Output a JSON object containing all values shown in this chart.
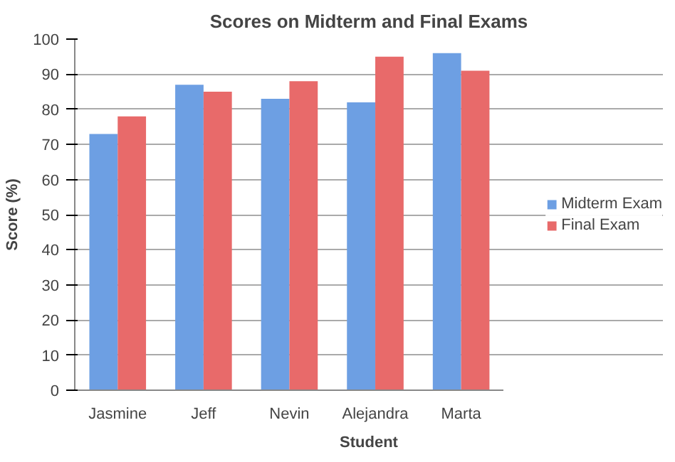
{
  "chart_data": {
    "type": "bar",
    "title": "Scores on Midterm and Final Exams",
    "xlabel": "Student",
    "ylabel": "Score (%)",
    "categories": [
      "Jasmine",
      "Jeff",
      "Nevin",
      "Alejandra",
      "Marta"
    ],
    "series": [
      {
        "name": "Midterm Exam",
        "color": "#6d9fe3",
        "values": [
          73,
          87,
          83,
          82,
          96
        ]
      },
      {
        "name": "Final Exam",
        "color": "#e86a6a",
        "values": [
          78,
          85,
          88,
          95,
          91
        ]
      }
    ],
    "ylim": [
      0,
      100
    ],
    "yticks": [
      0,
      10,
      20,
      30,
      40,
      50,
      60,
      70,
      80,
      90,
      100
    ],
    "grid": "y",
    "legend": "right"
  }
}
